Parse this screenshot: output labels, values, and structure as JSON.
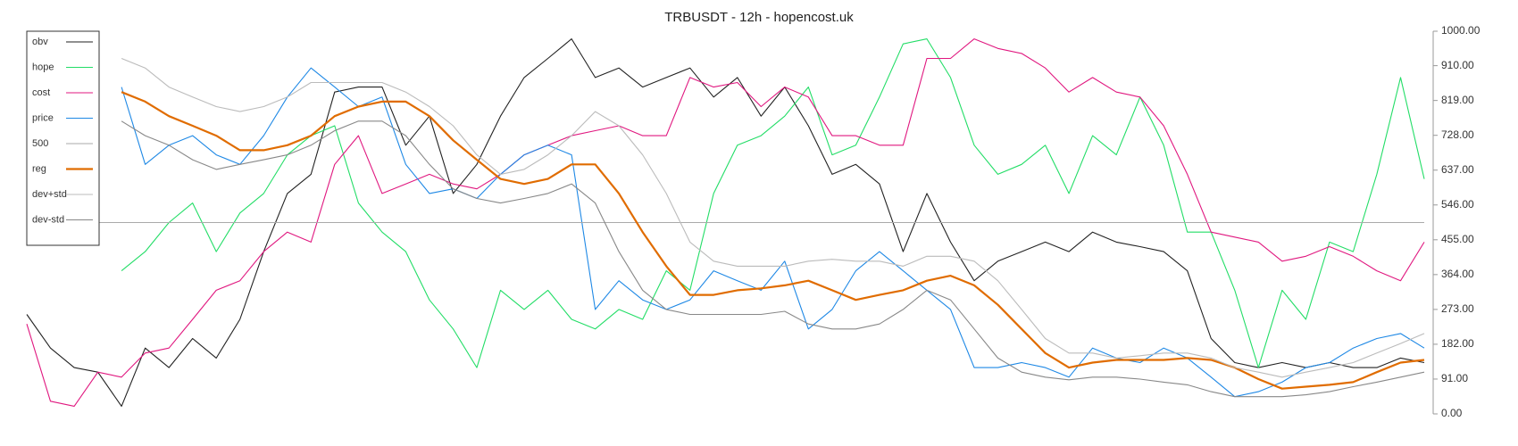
{
  "chart_data": {
    "type": "line",
    "title": "TRBUSDT - 12h - hopencost.uk",
    "ylim": [
      0,
      1000
    ],
    "yticks": [
      {
        "value": 0,
        "label": "0.00"
      },
      {
        "value": 91,
        "label": "91.00"
      },
      {
        "value": 182,
        "label": "182.00"
      },
      {
        "value": 273,
        "label": "273.00"
      },
      {
        "value": 364,
        "label": "364.00"
      },
      {
        "value": 455,
        "label": "455.00"
      },
      {
        "value": 546,
        "label": "546.00"
      },
      {
        "value": 637,
        "label": "637.00"
      },
      {
        "value": 728,
        "label": "728.00"
      },
      {
        "value": 819,
        "label": "819.00"
      },
      {
        "value": 910,
        "label": "910.00"
      },
      {
        "value": 1000,
        "label": "1000.00"
      }
    ],
    "grid": false,
    "legend": "upper-left",
    "series": [
      {
        "name": "obv",
        "color": "#222222",
        "values": [
          260,
          172,
          121,
          109,
          20,
          172,
          121,
          197,
          146,
          247,
          424,
          576,
          626,
          841,
          854,
          854,
          702,
          778,
          576,
          652,
          778,
          879,
          929,
          980,
          879,
          904,
          854,
          879,
          904,
          828,
          879,
          778,
          854,
          753,
          626,
          652,
          601,
          424,
          576,
          449,
          348,
          399,
          424,
          449,
          424,
          475,
          449,
          437,
          424,
          374,
          197,
          134,
          121,
          134,
          121,
          134,
          121,
          121,
          146,
          134
        ]
      },
      {
        "name": "hope",
        "color": "#22dd66",
        "values": [
          null,
          null,
          null,
          null,
          374,
          424,
          500,
          551,
          424,
          525,
          576,
          677,
          727,
          753,
          551,
          475,
          424,
          298,
          222,
          121,
          323,
          273,
          323,
          247,
          222,
          273,
          247,
          374,
          323,
          576,
          702,
          727,
          778,
          854,
          677,
          702,
          828,
          967,
          980,
          879,
          702,
          626,
          652,
          702,
          576,
          727,
          677,
          828,
          702,
          475,
          475,
          323,
          121,
          323,
          247,
          449,
          424,
          626,
          879,
          614
        ]
      },
      {
        "name": "cost",
        "color": "#e0177f",
        "values": [
          235,
          33,
          20,
          109,
          96,
          159,
          172,
          247,
          323,
          348,
          424,
          475,
          449,
          652,
          727,
          576,
          601,
          626,
          601,
          588,
          626,
          677,
          702,
          727,
          740,
          753,
          727,
          727,
          879,
          854,
          866,
          803,
          854,
          828,
          727,
          727,
          702,
          702,
          929,
          929,
          980,
          955,
          942,
          904,
          841,
          879,
          841,
          828,
          753,
          626,
          475,
          462,
          449,
          399,
          412,
          437,
          412,
          374,
          348,
          449
        ]
      },
      {
        "name": "price",
        "color": "#1e88e5",
        "values": [
          null,
          null,
          null,
          null,
          854,
          652,
          702,
          727,
          677,
          652,
          727,
          828,
          904,
          854,
          803,
          828,
          652,
          576,
          588,
          563,
          626,
          677,
          702,
          677,
          273,
          348,
          298,
          273,
          298,
          374,
          348,
          323,
          399,
          222,
          273,
          374,
          424,
          374,
          323,
          273,
          121,
          121,
          134,
          121,
          96,
          172,
          146,
          134,
          172,
          146,
          96,
          45,
          58,
          83,
          121,
          134,
          172,
          197,
          210,
          172
        ]
      },
      {
        "name": "500",
        "color": "#aaaaaa",
        "values": [
          500,
          500,
          500,
          500,
          500,
          500,
          500,
          500,
          500,
          500,
          500,
          500,
          500,
          500,
          500,
          500,
          500,
          500,
          500,
          500,
          500,
          500,
          500,
          500,
          500,
          500,
          500,
          500,
          500,
          500,
          500,
          500,
          500,
          500,
          500,
          500,
          500,
          500,
          500,
          500,
          500,
          500,
          500,
          500,
          500,
          500,
          500,
          500,
          500,
          500,
          500,
          500,
          500,
          500,
          500,
          500,
          500,
          500,
          500,
          500
        ]
      },
      {
        "name": "reg",
        "color": "#e06c00",
        "values": [
          null,
          null,
          null,
          null,
          841,
          816,
          778,
          753,
          727,
          689,
          689,
          702,
          727,
          778,
          803,
          816,
          816,
          778,
          715,
          664,
          614,
          601,
          614,
          652,
          652,
          576,
          475,
          386,
          311,
          311,
          323,
          328,
          336,
          348,
          323,
          298,
          311,
          323,
          348,
          361,
          336,
          285,
          222,
          159,
          121,
          134,
          141,
          141,
          141,
          146,
          141,
          121,
          91,
          66,
          71,
          76,
          83,
          109,
          134,
          141
        ]
      },
      {
        "name": "dev+std",
        "color": "#bbbbbb",
        "values": [
          null,
          null,
          null,
          null,
          929,
          904,
          854,
          828,
          803,
          790,
          803,
          828,
          866,
          866,
          866,
          866,
          841,
          803,
          753,
          677,
          626,
          639,
          677,
          727,
          790,
          753,
          677,
          576,
          449,
          399,
          386,
          386,
          386,
          399,
          404,
          399,
          399,
          386,
          412,
          412,
          399,
          348,
          273,
          197,
          159,
          159,
          146,
          152,
          159,
          159,
          146,
          121,
          109,
          96,
          109,
          121,
          134,
          159,
          184,
          210
        ]
      },
      {
        "name": "dev-std",
        "color": "#888888",
        "values": [
          null,
          null,
          null,
          null,
          765,
          727,
          702,
          664,
          639,
          652,
          664,
          677,
          702,
          740,
          765,
          765,
          727,
          652,
          588,
          563,
          551,
          563,
          576,
          601,
          551,
          424,
          323,
          273,
          260,
          260,
          260,
          260,
          268,
          235,
          222,
          222,
          235,
          273,
          323,
          298,
          222,
          146,
          109,
          96,
          89,
          96,
          96,
          91,
          83,
          76,
          58,
          45,
          45,
          45,
          50,
          58,
          71,
          83,
          96,
          109
        ]
      }
    ]
  }
}
